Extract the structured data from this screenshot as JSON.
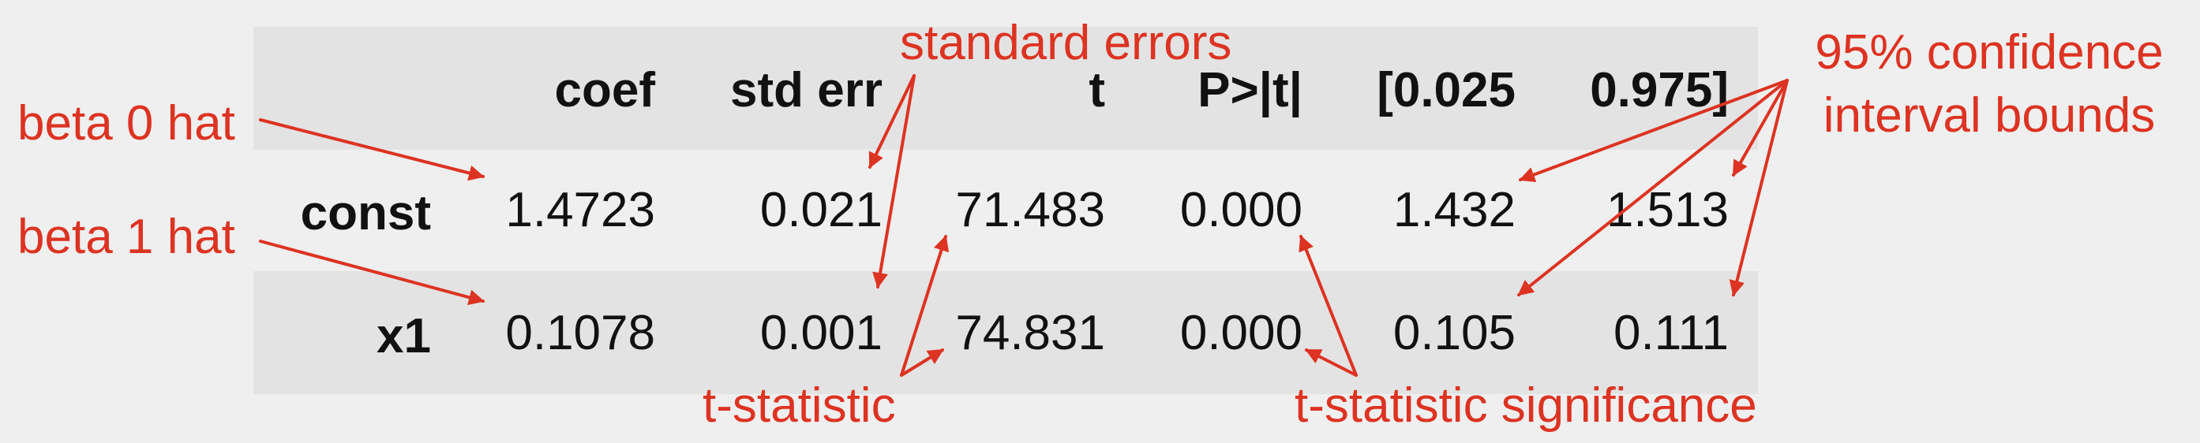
{
  "table": {
    "columns": [
      "coef",
      "std err",
      "t",
      "P>|t|",
      "[0.025",
      "0.975]"
    ],
    "rows": [
      {
        "label": "const",
        "values": [
          "1.4723",
          "0.021",
          "71.483",
          "0.000",
          "1.432",
          "1.513"
        ]
      },
      {
        "label": "x1",
        "values": [
          "0.1078",
          "0.001",
          "74.831",
          "0.000",
          "0.105",
          "0.111"
        ]
      }
    ]
  },
  "annotations": {
    "standard_errors": "standard errors",
    "confidence_line1": "95% confidence",
    "confidence_line2": "interval bounds",
    "beta0": "beta 0 hat",
    "beta1": "beta 1 hat",
    "t_statistic": "t-statistic",
    "t_significance": "t-statistic significance"
  },
  "colors": {
    "annotation": "#dd3322",
    "band": "#e3e3e3",
    "background": "#efefef",
    "text": "#111111"
  }
}
